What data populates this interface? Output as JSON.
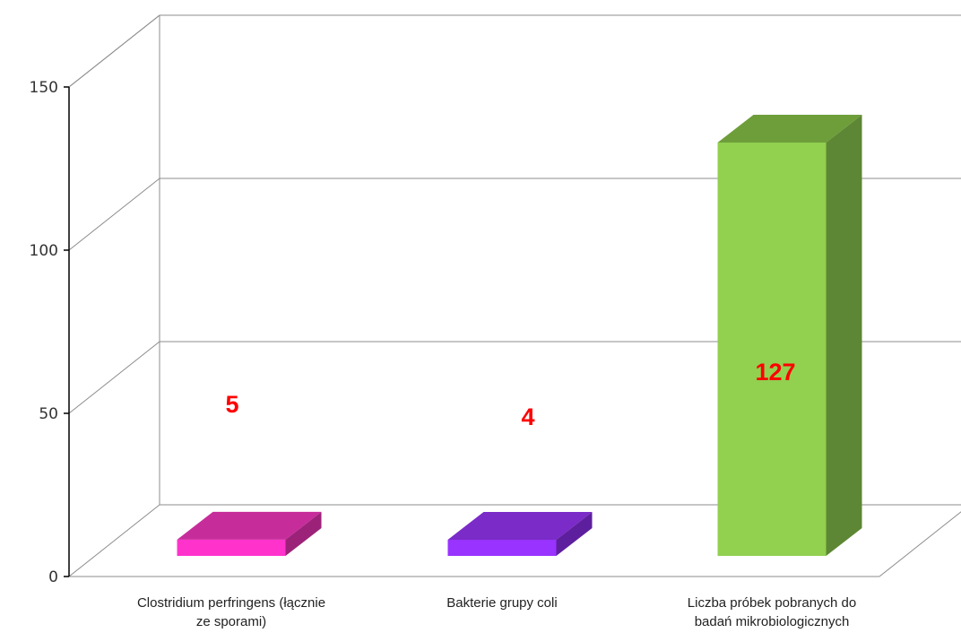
{
  "chart_data": {
    "type": "bar",
    "style": "3d",
    "categories": [
      [
        "Clostridium perfringens (łącznie",
        "ze sporami)"
      ],
      [
        "Bakterie grupy coli"
      ],
      [
        "Liczba próbek pobranych do",
        "badań mikrobiologicznych"
      ]
    ],
    "values": [
      5,
      4,
      127
    ],
    "data_labels": [
      "5",
      "4",
      "127"
    ],
    "colors": [
      {
        "front": "#ff33cc",
        "top": "#c62d9b",
        "side": "#9c2279"
      },
      {
        "front": "#9933ff",
        "top": "#7a2bc8",
        "side": "#5e1f9e"
      },
      {
        "front": "#92d050",
        "top": "#6e9e3a",
        "side": "#5d8734"
      }
    ],
    "y_ticks": [
      0,
      50,
      100,
      150
    ],
    "ylim": [
      0,
      150
    ],
    "grid": true,
    "legend": false,
    "title": "",
    "xlabel": "",
    "ylabel": ""
  }
}
